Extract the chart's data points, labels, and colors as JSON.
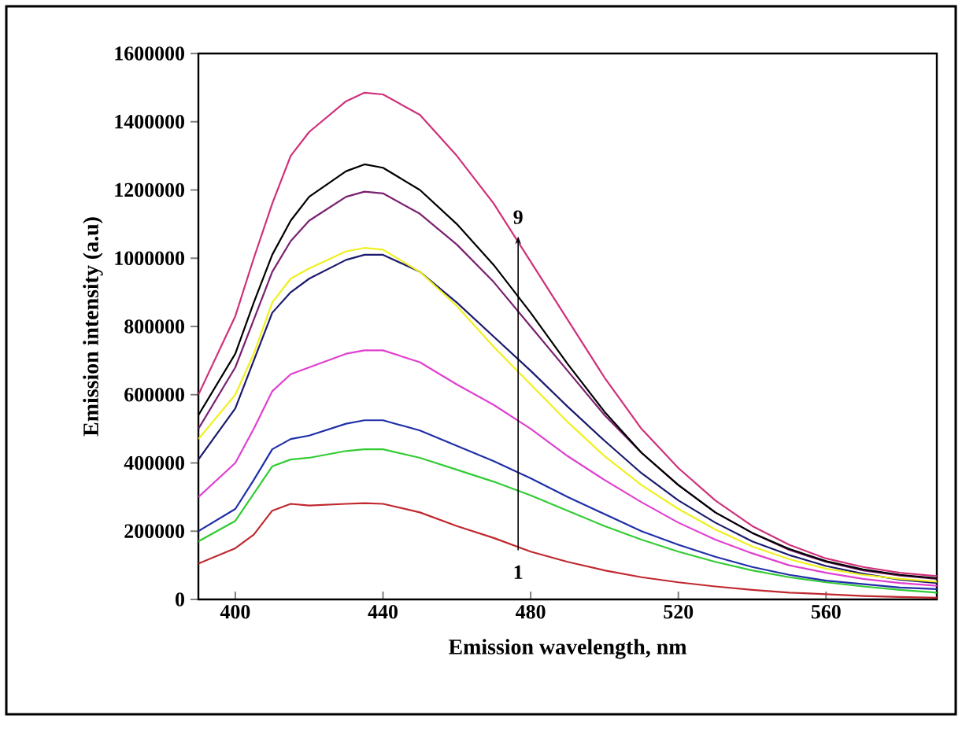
{
  "chart_data": {
    "type": "line",
    "xlabel": "Emission wavelength, nm",
    "ylabel": "Emission intensity (a.u)",
    "x": [
      390,
      400,
      405,
      410,
      415,
      420,
      430,
      435,
      440,
      450,
      460,
      470,
      480,
      490,
      500,
      510,
      520,
      530,
      540,
      550,
      560,
      570,
      580,
      590
    ],
    "xlim": [
      390,
      590
    ],
    "ylim": [
      0,
      1600000
    ],
    "xticks": [
      400,
      440,
      480,
      520,
      560
    ],
    "yticks": [
      0,
      200000,
      400000,
      600000,
      800000,
      1000000,
      1200000,
      1400000,
      1600000
    ],
    "series": [
      {
        "color": "#c0282f",
        "values": [
          105000,
          150000,
          190000,
          260000,
          280000,
          275000,
          280000,
          282000,
          280000,
          255000,
          215000,
          180000,
          140000,
          110000,
          85000,
          65000,
          50000,
          38000,
          28000,
          20000,
          15000,
          10000,
          7000,
          5000
        ]
      },
      {
        "color": "#33cc33",
        "values": [
          170000,
          230000,
          310000,
          390000,
          410000,
          415000,
          435000,
          440000,
          440000,
          415000,
          380000,
          345000,
          305000,
          260000,
          215000,
          175000,
          140000,
          110000,
          85000,
          65000,
          50000,
          38000,
          28000,
          20000
        ]
      },
      {
        "color": "#1f2fa8",
        "values": [
          200000,
          265000,
          350000,
          440000,
          470000,
          480000,
          515000,
          525000,
          525000,
          495000,
          450000,
          405000,
          355000,
          300000,
          250000,
          200000,
          160000,
          125000,
          95000,
          72000,
          55000,
          45000,
          35000,
          30000
        ]
      },
      {
        "color": "#e040d0",
        "values": [
          300000,
          400000,
          500000,
          610000,
          660000,
          680000,
          720000,
          730000,
          730000,
          695000,
          630000,
          570000,
          500000,
          420000,
          350000,
          285000,
          225000,
          175000,
          135000,
          100000,
          78000,
          60000,
          48000,
          40000
        ]
      },
      {
        "color": "#1a1a6e",
        "values": [
          410000,
          560000,
          700000,
          840000,
          900000,
          940000,
          995000,
          1010000,
          1010000,
          960000,
          870000,
          770000,
          670000,
          565000,
          465000,
          370000,
          290000,
          225000,
          170000,
          130000,
          98000,
          75000,
          58000,
          48000
        ]
      },
      {
        "color": "#f0f020",
        "values": [
          470000,
          600000,
          720000,
          870000,
          940000,
          970000,
          1020000,
          1030000,
          1025000,
          960000,
          860000,
          740000,
          630000,
          520000,
          420000,
          335000,
          265000,
          205000,
          155000,
          118000,
          90000,
          72000,
          60000,
          52000
        ]
      },
      {
        "color": "#7a2070",
        "values": [
          500000,
          680000,
          820000,
          960000,
          1050000,
          1110000,
          1180000,
          1195000,
          1190000,
          1130000,
          1040000,
          930000,
          800000,
          670000,
          540000,
          430000,
          335000,
          255000,
          195000,
          145000,
          110000,
          85000,
          70000,
          60000
        ]
      },
      {
        "color": "#000000",
        "values": [
          540000,
          720000,
          870000,
          1010000,
          1110000,
          1180000,
          1255000,
          1275000,
          1265000,
          1200000,
          1100000,
          980000,
          840000,
          690000,
          550000,
          430000,
          335000,
          255000,
          195000,
          148000,
          112000,
          88000,
          72000,
          62000
        ]
      },
      {
        "color": "#d0307a",
        "values": [
          600000,
          830000,
          1000000,
          1160000,
          1300000,
          1370000,
          1460000,
          1485000,
          1480000,
          1420000,
          1300000,
          1160000,
          990000,
          820000,
          650000,
          500000,
          385000,
          290000,
          215000,
          160000,
          120000,
          95000,
          78000,
          68000
        ]
      }
    ],
    "annotations": [
      "1",
      "9"
    ]
  }
}
